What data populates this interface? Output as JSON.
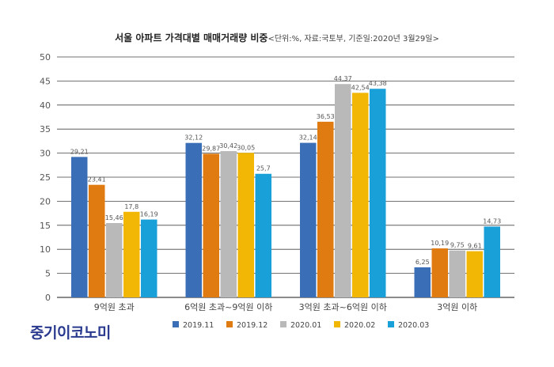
{
  "colors": {
    "series": [
      "#3a6fb7",
      "#e07b12",
      "#b9b9b9",
      "#f2b705",
      "#1aa0d8"
    ],
    "grid": "#444444",
    "brand": "#2a3a8f"
  },
  "brand_text": "중기이코노미",
  "chart_data": {
    "type": "bar",
    "title": "서울 아파트 가격대별 매매거래량 비중",
    "subtitle": "<단위:%, 자료:국토부, 기준일:2020년 3월29일>",
    "categories": [
      "9억원 초과",
      "6억원 초과~9억원 이하",
      "3억원 초과~6억원 이하",
      "3억원 이하"
    ],
    "series": [
      {
        "name": "2019.11",
        "values": [
          29.21,
          32.12,
          32.14,
          6.25
        ]
      },
      {
        "name": "2019.12",
        "values": [
          23.41,
          29.87,
          36.53,
          10.19
        ]
      },
      {
        "name": "2020.01",
        "values": [
          15.46,
          30.42,
          44.37,
          9.75
        ]
      },
      {
        "name": "2020.02",
        "values": [
          17.8,
          30.05,
          42.54,
          9.61
        ]
      },
      {
        "name": "2020.03",
        "values": [
          16.19,
          25.7,
          43.38,
          14.73
        ]
      }
    ],
    "value_labels": [
      [
        "29,21",
        "32,12",
        "32,14",
        "6,25"
      ],
      [
        "23,41",
        "29,87",
        "36,53",
        "10,19"
      ],
      [
        "15,46",
        "30,42",
        "44,37",
        "9,75"
      ],
      [
        "17,8",
        "30,05",
        "42,54",
        "9,61"
      ],
      [
        "16,19",
        "25,7",
        "43,38",
        "14,73"
      ]
    ],
    "y_ticks": [
      0,
      5,
      10,
      15,
      20,
      25,
      30,
      35,
      40,
      45,
      50
    ],
    "ylim": [
      0,
      50
    ],
    "grid": true,
    "legend_position": "bottom"
  }
}
